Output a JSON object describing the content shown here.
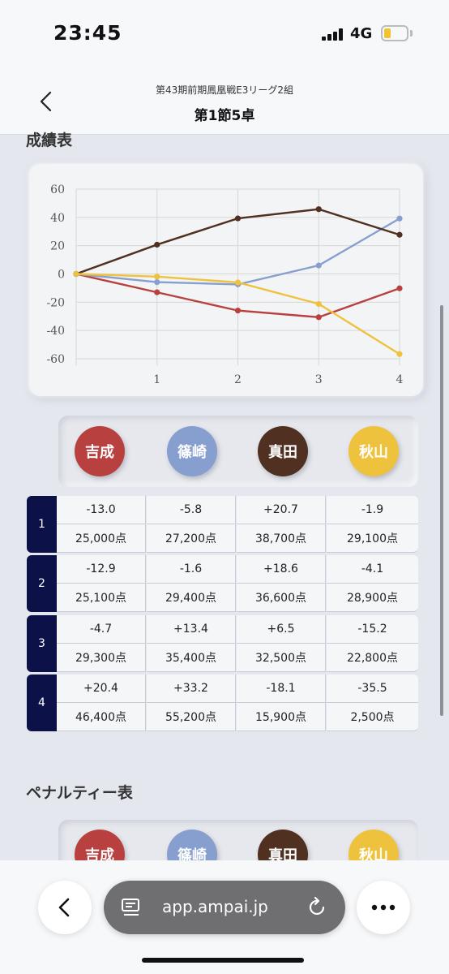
{
  "status_bar": {
    "time": "23:45",
    "network": "4G"
  },
  "header": {
    "subtitle": "第43期前期鳳凰戦E3リーグ2組",
    "title": "第1節5卓"
  },
  "sections": {
    "score_title": "成績表",
    "penalty_title": "ペナルティー表"
  },
  "players": [
    {
      "name": "吉成",
      "color": "#b8403f"
    },
    {
      "name": "篠崎",
      "color": "#879fcf"
    },
    {
      "name": "真田",
      "color": "#4f3021"
    },
    {
      "name": "秋山",
      "color": "#eec23c"
    }
  ],
  "chart_data": {
    "type": "line",
    "x": [
      0,
      1,
      2,
      3,
      4
    ],
    "x_tick_labels": [
      "1",
      "2",
      "3",
      "4"
    ],
    "ylim": [
      -60,
      60
    ],
    "y_ticks": [
      60,
      40,
      20,
      0,
      -20,
      -40,
      -60
    ],
    "grid": true,
    "series": [
      {
        "name": "吉成",
        "color": "#b8403f",
        "values": [
          0,
          -13.0,
          -25.9,
          -30.6,
          -10.2
        ]
      },
      {
        "name": "篠崎",
        "color": "#879fcf",
        "values": [
          0,
          -5.8,
          -7.4,
          6.0,
          39.2
        ]
      },
      {
        "name": "真田",
        "color": "#4f3021",
        "values": [
          0,
          20.7,
          39.3,
          45.8,
          27.7
        ]
      },
      {
        "name": "秋山",
        "color": "#eec23c",
        "values": [
          0,
          -1.9,
          -6.0,
          -21.2,
          -56.7
        ]
      }
    ]
  },
  "rounds": [
    {
      "label": "1",
      "diffs": [
        "-13.0",
        "-5.8",
        "+20.7",
        "-1.9"
      ],
      "points": [
        "25,000点",
        "27,200点",
        "38,700点",
        "29,100点"
      ]
    },
    {
      "label": "2",
      "diffs": [
        "-12.9",
        "-1.6",
        "+18.6",
        "-4.1"
      ],
      "points": [
        "25,100点",
        "29,400点",
        "36,600点",
        "28,900点"
      ]
    },
    {
      "label": "3",
      "diffs": [
        "-4.7",
        "+13.4",
        "+6.5",
        "-15.2"
      ],
      "points": [
        "29,300点",
        "35,400点",
        "32,500点",
        "22,800点"
      ]
    },
    {
      "label": "4",
      "diffs": [
        "+20.4",
        "+33.2",
        "-18.1",
        "-35.5"
      ],
      "points": [
        "46,400点",
        "55,200点",
        "15,900点",
        "2,500点"
      ]
    }
  ],
  "browser": {
    "url": "app.ampai.jp"
  }
}
